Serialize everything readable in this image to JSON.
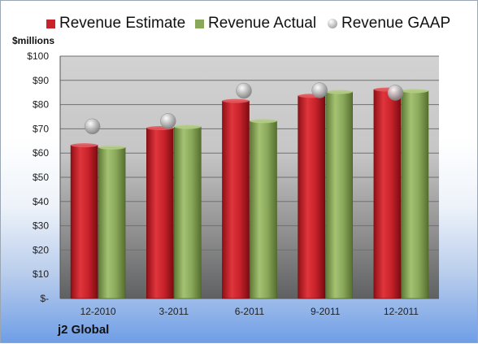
{
  "units_label": "$millions",
  "company": "j2 Global",
  "colors": {
    "estimate": "#c8222b",
    "actual": "#8aa85a",
    "gaap": "#b8b8b8"
  },
  "legend": [
    {
      "label": "Revenue Estimate",
      "icon": "red-square"
    },
    {
      "label": "Revenue Actual",
      "icon": "green-square"
    },
    {
      "label": "Revenue GAAP",
      "icon": "gray-sphere"
    }
  ],
  "chart_data": {
    "type": "bar",
    "categories": [
      "12-2010",
      "3-2011",
      "6-2011",
      "9-2011",
      "12-2011"
    ],
    "series": [
      {
        "name": "Revenue Estimate",
        "values": [
          63.2,
          70.3,
          81.5,
          83.6,
          86.2
        ]
      },
      {
        "name": "Revenue Actual",
        "values": [
          62.3,
          70.8,
          73.2,
          85.2,
          85.6
        ]
      },
      {
        "name": "Revenue GAAP",
        "values": [
          71.0,
          73.2,
          85.7,
          85.9,
          84.9
        ],
        "style": "marker"
      }
    ],
    "ylim": [
      0,
      100
    ],
    "ytick_labels": [
      "$-",
      "$10",
      "$20",
      "$30",
      "$40",
      "$50",
      "$60",
      "$70",
      "$80",
      "$90",
      "$100"
    ],
    "ylabel": "$millions",
    "grid": true,
    "legend_position": "top"
  }
}
